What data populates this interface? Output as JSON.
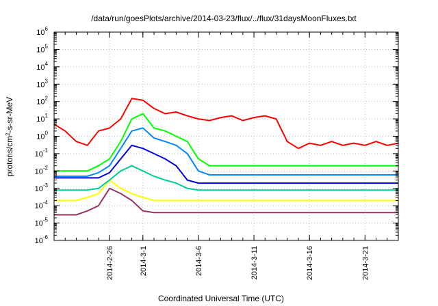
{
  "chart_data": {
    "type": "line",
    "title": "/data/run/goesPlots/archive/2014-03-23/flux/../flux/31daysMoonFluxes.txt",
    "xlabel": "Coordinated Universal Time (UTC)",
    "ylabel": {
      "prefix": "protons/cm",
      "superscript": "2",
      "suffix": "-s-sr-MeV"
    },
    "xaxis": {
      "type": "date",
      "range": [
        "2014-02-21T00:00",
        "2014-03-24T00:00"
      ],
      "ticks": [
        "2014-2-26",
        "2014-3-1",
        "2014-3-6",
        "2014-3-11",
        "2014-3-16",
        "2014-3-21"
      ],
      "tick_dates": [
        "2014-02-26",
        "2014-03-01",
        "2014-03-06",
        "2014-03-11",
        "2014-03-16",
        "2014-03-21"
      ]
    },
    "yaxis": {
      "scale": "log",
      "range": [
        1e-06,
        1000000.0
      ],
      "ticks": [
        {
          "base": "10",
          "exp": "-6"
        },
        {
          "base": "10",
          "exp": "-5"
        },
        {
          "base": "10",
          "exp": "-4"
        },
        {
          "base": "10",
          "exp": "-3"
        },
        {
          "base": "10",
          "exp": "-2"
        },
        {
          "base": "10",
          "exp": "-1"
        },
        {
          "base": "10",
          "exp": "0"
        },
        {
          "base": "10",
          "exp": "1"
        },
        {
          "base": "10",
          "exp": "2"
        },
        {
          "base": "10",
          "exp": "3"
        },
        {
          "base": "10",
          "exp": "4"
        },
        {
          "base": "10",
          "exp": "5"
        },
        {
          "base": "10",
          "exp": "6"
        }
      ]
    },
    "grid": true,
    "legend": "none",
    "series": [
      {
        "color": "#ff0000",
        "x": [
          "2014-02-21",
          "2014-02-22",
          "2014-02-23",
          "2014-02-24",
          "2014-02-25",
          "2014-02-26",
          "2014-02-27",
          "2014-02-28",
          "2014-03-01",
          "2014-03-02",
          "2014-03-03",
          "2014-03-04",
          "2014-03-05",
          "2014-03-06",
          "2014-03-07",
          "2014-03-08",
          "2014-03-09",
          "2014-03-10",
          "2014-03-11",
          "2014-03-12",
          "2014-03-13",
          "2014-03-14",
          "2014-03-15",
          "2014-03-16",
          "2014-03-17",
          "2014-03-18",
          "2014-03-19",
          "2014-03-20",
          "2014-03-21",
          "2014-03-22",
          "2014-03-23",
          "2014-03-24"
        ],
        "y": [
          5,
          2,
          0.5,
          0.3,
          2,
          3,
          10,
          150,
          120,
          40,
          20,
          25,
          15,
          10,
          8,
          12,
          15,
          8,
          12,
          15,
          10,
          0.5,
          0.2,
          0.4,
          0.3,
          0.5,
          0.3,
          0.4,
          0.3,
          0.5,
          0.3,
          0.4
        ]
      },
      {
        "color": "#00ff00",
        "x": [
          "2014-02-21",
          "2014-02-22",
          "2014-02-23",
          "2014-02-24",
          "2014-02-25",
          "2014-02-26",
          "2014-02-27",
          "2014-02-28",
          "2014-03-01",
          "2014-03-02",
          "2014-03-03",
          "2014-03-04",
          "2014-03-05",
          "2014-03-06",
          "2014-03-07",
          "2014-03-08",
          "2014-03-09",
          "2014-03-10",
          "2014-03-11",
          "2014-03-12",
          "2014-03-13",
          "2014-03-14",
          "2014-03-15",
          "2014-03-16",
          "2014-03-17",
          "2014-03-18",
          "2014-03-19",
          "2014-03-20",
          "2014-03-21",
          "2014-03-22",
          "2014-03-23",
          "2014-03-24"
        ],
        "y": [
          0.01,
          0.01,
          0.01,
          0.01,
          0.02,
          0.05,
          0.5,
          10,
          20,
          3,
          2,
          1,
          0.5,
          0.05,
          0.02,
          0.02,
          0.02,
          0.02,
          0.02,
          0.02,
          0.02,
          0.02,
          0.02,
          0.02,
          0.02,
          0.02,
          0.02,
          0.02,
          0.02,
          0.02,
          0.02,
          0.02
        ]
      },
      {
        "color": "#0088ff",
        "x": [
          "2014-02-21",
          "2014-02-22",
          "2014-02-23",
          "2014-02-24",
          "2014-02-25",
          "2014-02-26",
          "2014-02-27",
          "2014-02-28",
          "2014-03-01",
          "2014-03-02",
          "2014-03-03",
          "2014-03-04",
          "2014-03-05",
          "2014-03-06",
          "2014-03-07",
          "2014-03-08",
          "2014-03-09",
          "2014-03-10",
          "2014-03-11",
          "2014-03-12",
          "2014-03-13",
          "2014-03-14",
          "2014-03-15",
          "2014-03-16",
          "2014-03-17",
          "2014-03-18",
          "2014-03-19",
          "2014-03-20",
          "2014-03-21",
          "2014-03-22",
          "2014-03-23",
          "2014-03-24"
        ],
        "y": [
          0.005,
          0.005,
          0.005,
          0.005,
          0.008,
          0.02,
          0.2,
          2,
          3,
          0.8,
          0.5,
          0.3,
          0.1,
          0.01,
          0.006,
          0.006,
          0.006,
          0.006,
          0.006,
          0.006,
          0.006,
          0.006,
          0.006,
          0.006,
          0.006,
          0.006,
          0.006,
          0.006,
          0.006,
          0.006,
          0.006,
          0.006
        ]
      },
      {
        "color": "#0000dd",
        "x": [
          "2014-02-21",
          "2014-02-22",
          "2014-02-23",
          "2014-02-24",
          "2014-02-25",
          "2014-02-26",
          "2014-02-27",
          "2014-02-28",
          "2014-03-01",
          "2014-03-02",
          "2014-03-03",
          "2014-03-04",
          "2014-03-05",
          "2014-03-06",
          "2014-03-07",
          "2014-03-08",
          "2014-03-09",
          "2014-03-10",
          "2014-03-11",
          "2014-03-12",
          "2014-03-13",
          "2014-03-14",
          "2014-03-15",
          "2014-03-16",
          "2014-03-17",
          "2014-03-18",
          "2014-03-19",
          "2014-03-20",
          "2014-03-21",
          "2014-03-22",
          "2014-03-23",
          "2014-03-24"
        ],
        "y": [
          0.004,
          0.004,
          0.004,
          0.004,
          0.004,
          0.008,
          0.05,
          0.3,
          0.2,
          0.1,
          0.05,
          0.02,
          0.003,
          0.002,
          0.002,
          0.002,
          0.002,
          0.002,
          0.002,
          0.002,
          0.002,
          0.002,
          0.002,
          0.002,
          0.002,
          0.002,
          0.002,
          0.002,
          0.002,
          0.002,
          0.002,
          0.002
        ]
      },
      {
        "color": "#00cc99",
        "x": [
          "2014-02-21",
          "2014-02-22",
          "2014-02-23",
          "2014-02-24",
          "2014-02-25",
          "2014-02-26",
          "2014-02-27",
          "2014-02-28",
          "2014-03-01",
          "2014-03-02",
          "2014-03-03",
          "2014-03-04",
          "2014-03-05",
          "2014-03-06",
          "2014-03-07",
          "2014-03-08",
          "2014-03-09",
          "2014-03-10",
          "2014-03-11",
          "2014-03-12",
          "2014-03-13",
          "2014-03-14",
          "2014-03-15",
          "2014-03-16",
          "2014-03-17",
          "2014-03-18",
          "2014-03-19",
          "2014-03-20",
          "2014-03-21",
          "2014-03-22",
          "2014-03-23",
          "2014-03-24"
        ],
        "y": [
          0.0008,
          0.0008,
          0.0008,
          0.0008,
          0.001,
          0.003,
          0.01,
          0.02,
          0.01,
          0.005,
          0.003,
          0.002,
          0.001,
          0.0008,
          0.0008,
          0.0008,
          0.0008,
          0.0008,
          0.0008,
          0.0008,
          0.0008,
          0.0008,
          0.0008,
          0.0008,
          0.0008,
          0.0008,
          0.0008,
          0.0008,
          0.0008,
          0.0008,
          0.0008,
          0.0008
        ]
      },
      {
        "color": "#ffff00",
        "x": [
          "2014-02-21",
          "2014-02-22",
          "2014-02-23",
          "2014-02-24",
          "2014-02-25",
          "2014-02-26",
          "2014-02-27",
          "2014-02-28",
          "2014-03-01",
          "2014-03-02",
          "2014-03-03",
          "2014-03-04",
          "2014-03-05",
          "2014-03-06",
          "2014-03-07",
          "2014-03-08",
          "2014-03-09",
          "2014-03-10",
          "2014-03-11",
          "2014-03-12",
          "2014-03-13",
          "2014-03-14",
          "2014-03-15",
          "2014-03-16",
          "2014-03-17",
          "2014-03-18",
          "2014-03-19",
          "2014-03-20",
          "2014-03-21",
          "2014-03-22",
          "2014-03-23",
          "2014-03-24"
        ],
        "y": [
          0.0002,
          0.0002,
          0.0002,
          0.0003,
          0.0005,
          0.003,
          0.001,
          0.0005,
          0.0003,
          0.0002,
          0.0002,
          0.0002,
          0.0002,
          0.0002,
          0.0002,
          0.0002,
          0.0002,
          0.0002,
          0.0002,
          0.0002,
          0.0002,
          0.0002,
          0.0002,
          0.0002,
          0.0002,
          0.0002,
          0.0002,
          0.0002,
          0.0002,
          0.0002,
          0.0002,
          0.0002
        ]
      },
      {
        "color": "#993366",
        "x": [
          "2014-02-21",
          "2014-02-22",
          "2014-02-23",
          "2014-02-24",
          "2014-02-25",
          "2014-02-26",
          "2014-02-27",
          "2014-02-28",
          "2014-03-01",
          "2014-03-02",
          "2014-03-03",
          "2014-03-04",
          "2014-03-05",
          "2014-03-06",
          "2014-03-07",
          "2014-03-08",
          "2014-03-09",
          "2014-03-10",
          "2014-03-11",
          "2014-03-12",
          "2014-03-13",
          "2014-03-14",
          "2014-03-15",
          "2014-03-16",
          "2014-03-17",
          "2014-03-18",
          "2014-03-19",
          "2014-03-20",
          "2014-03-21",
          "2014-03-22",
          "2014-03-23",
          "2014-03-24"
        ],
        "y": [
          3e-05,
          3e-05,
          3e-05,
          5e-05,
          0.0001,
          0.001,
          0.0005,
          0.0002,
          5e-05,
          4e-05,
          4e-05,
          4e-05,
          4e-05,
          4e-05,
          4e-05,
          4e-05,
          4e-05,
          4e-05,
          4e-05,
          4e-05,
          4e-05,
          4e-05,
          4e-05,
          4e-05,
          4e-05,
          4e-05,
          4e-05,
          4e-05,
          4e-05,
          4e-05,
          4e-05,
          4e-05
        ]
      }
    ]
  }
}
